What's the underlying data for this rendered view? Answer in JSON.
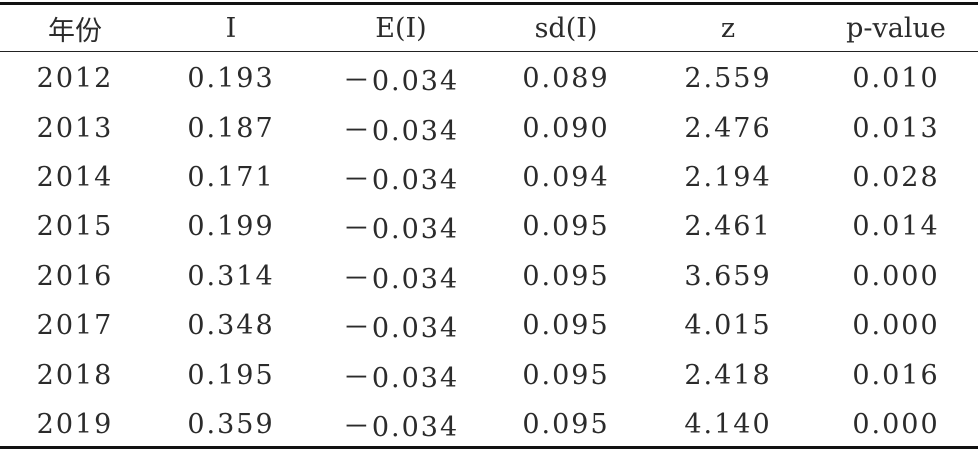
{
  "table": {
    "headers": [
      "年份",
      "I",
      "E(I)",
      "sd(I)",
      "z",
      "p-value"
    ],
    "rows": [
      [
        "2012",
        "0.193",
        "－0.034",
        "0.089",
        "2.559",
        "0.010"
      ],
      [
        "2013",
        "0.187",
        "－0.034",
        "0.090",
        "2.476",
        "0.013"
      ],
      [
        "2014",
        "0.171",
        "－0.034",
        "0.094",
        "2.194",
        "0.028"
      ],
      [
        "2015",
        "0.199",
        "－0.034",
        "0.095",
        "2.461",
        "0.014"
      ],
      [
        "2016",
        "0.314",
        "－0.034",
        "0.095",
        "3.659",
        "0.000"
      ],
      [
        "2017",
        "0.348",
        "－0.034",
        "0.095",
        "4.015",
        "0.000"
      ],
      [
        "2018",
        "0.195",
        "－0.034",
        "0.095",
        "2.418",
        "0.016"
      ],
      [
        "2019",
        "0.359",
        "－0.034",
        "0.095",
        "4.140",
        "0.000"
      ]
    ]
  }
}
